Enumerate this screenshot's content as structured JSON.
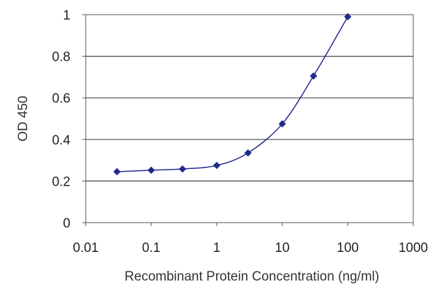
{
  "chart_data": {
    "type": "line",
    "title": "",
    "xlabel": "Recombinant Protein Concentration (ng/ml)",
    "ylabel": "OD 450",
    "x_scale": "log",
    "xlim": [
      0.01,
      1000
    ],
    "ylim": [
      0,
      1
    ],
    "x_ticks": [
      "0.01",
      "0.1",
      "1",
      "10",
      "100",
      "1000"
    ],
    "y_ticks": [
      "0",
      "0.2",
      "0.4",
      "0.6",
      "0.8",
      "1"
    ],
    "grid": "horizontal",
    "legend": "none",
    "series": [
      {
        "color": "#1f2a8c",
        "marker": "diamond",
        "points": [
          {
            "x": 0.03,
            "y": 0.245
          },
          {
            "x": 0.1,
            "y": 0.252
          },
          {
            "x": 0.3,
            "y": 0.258
          },
          {
            "x": 1,
            "y": 0.275
          },
          {
            "x": 3,
            "y": 0.335
          },
          {
            "x": 10,
            "y": 0.475
          },
          {
            "x": 30,
            "y": 0.705
          },
          {
            "x": 100,
            "y": 0.99
          }
        ]
      }
    ]
  }
}
